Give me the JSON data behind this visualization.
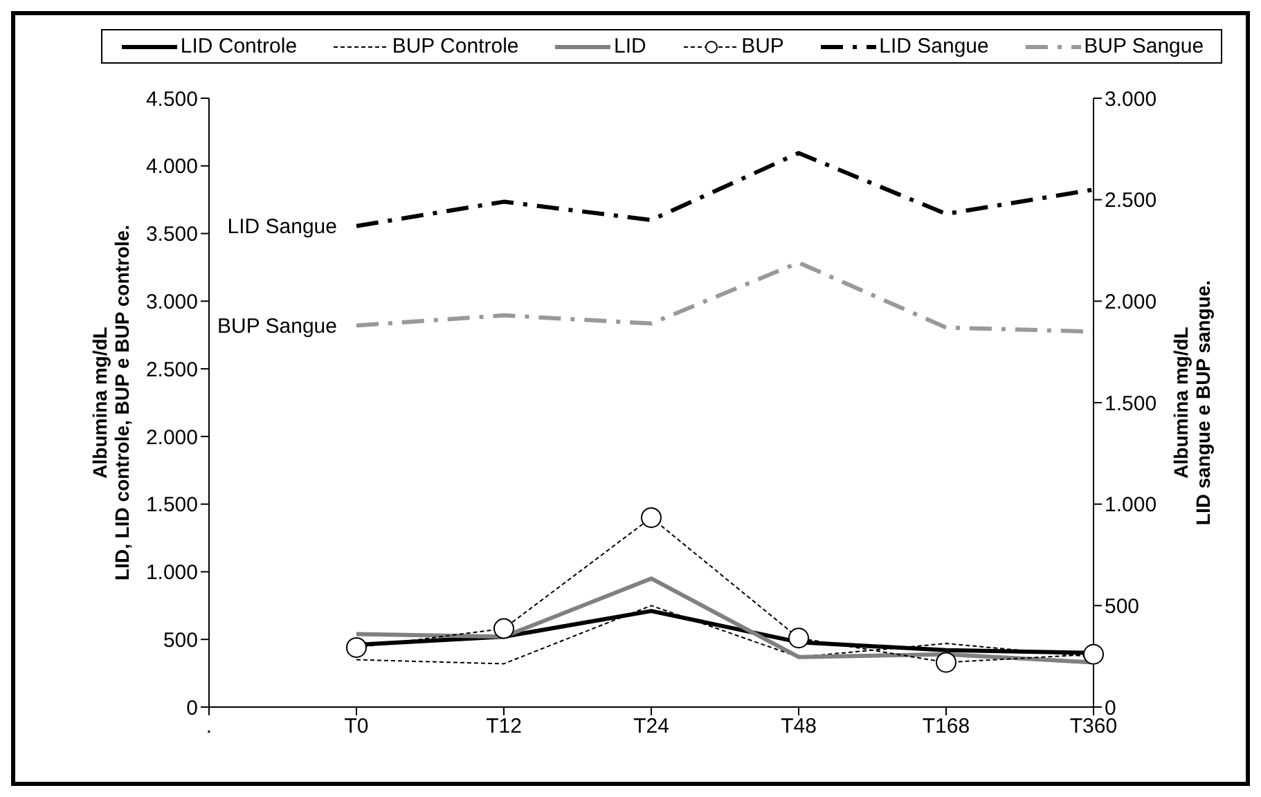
{
  "chart_data": {
    "type": "line",
    "categories": [
      ".",
      "T0",
      "T12",
      "T24",
      "T48",
      "T168",
      "T360"
    ],
    "ylabel": "Albumina  mg/dL\nLID, LID controle, BUP e BUP controle.",
    "y2label": "Albumina  mg/dL\nLID sangue e BUP sangue.",
    "ylim": [
      0,
      4500
    ],
    "yticks": [
      0,
      500,
      {
        "value": 1000,
        "label": "1.000"
      },
      {
        "value": 1500,
        "label": "1.500"
      },
      {
        "value": 2000,
        "label": "2.000"
      },
      {
        "value": 2500,
        "label": "2.500"
      },
      {
        "value": 3000,
        "label": "3.000"
      },
      {
        "value": 3500,
        "label": "3.500"
      },
      {
        "value": 4000,
        "label": "4.000"
      },
      {
        "value": 4500,
        "label": "4.500"
      }
    ],
    "y2lim": [
      0,
      3000
    ],
    "y2ticks": [
      0,
      500,
      {
        "value": 1000,
        "label": "1.000"
      },
      {
        "value": 1500,
        "label": "1.500"
      },
      {
        "value": 2000,
        "label": "2.000"
      },
      {
        "value": 2500,
        "label": "2.500"
      },
      {
        "value": 3000,
        "label": "3.000"
      }
    ],
    "legend": "top",
    "grid": false,
    "series": [
      {
        "name": "LID Controle",
        "color": "#000000",
        "line_style": "solid",
        "marker": "none",
        "values": [
          null,
          460,
          520,
          710,
          480,
          420,
          400
        ]
      },
      {
        "name": "BUP Controle",
        "color": "#000000",
        "line_style": "dotted",
        "marker": "none",
        "values": [
          null,
          350,
          320,
          750,
          370,
          470,
          370
        ]
      },
      {
        "name": "LID",
        "color": "#808080",
        "line_style": "solid",
        "marker": "none",
        "values": [
          null,
          540,
          520,
          950,
          370,
          390,
          330
        ]
      },
      {
        "name": "BUP",
        "color": "#000000",
        "line_style": "dotted",
        "marker": "circle",
        "values": [
          null,
          440,
          580,
          1400,
          510,
          330,
          390
        ]
      },
      {
        "name": "LID Sangue",
        "color": "#000000",
        "line_style": "dashed",
        "marker": "none",
        "axis": "y2",
        "values": [
          null,
          2370,
          2490,
          2400,
          2730,
          2430,
          2550
        ]
      },
      {
        "name": "BUP Sangue",
        "color": "#999999",
        "line_style": "dashed",
        "marker": "none",
        "axis": "y2",
        "values": [
          null,
          1880,
          1930,
          1890,
          2190,
          1870,
          1850
        ]
      }
    ],
    "annotations": [
      "LID Sangue",
      "BUP Sangue"
    ]
  }
}
